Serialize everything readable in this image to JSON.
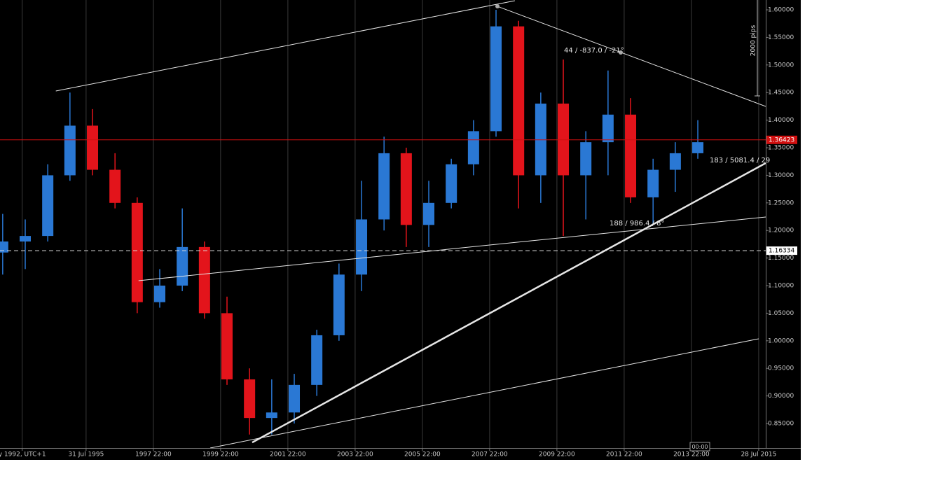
{
  "chart_data": {
    "type": "candlestick",
    "xlim": [
      1993.02,
      2015.79
    ],
    "ylim": [
      0.8056,
      1.6178
    ],
    "xticks": [
      {
        "value": 1993.68,
        "label": "y 1992, UTC+1"
      },
      {
        "value": 1995.58,
        "label": "31 Jul 1995"
      },
      {
        "value": 1997.58,
        "label": "1997 22:00"
      },
      {
        "value": 1999.58,
        "label": "1999 22:00"
      },
      {
        "value": 2001.58,
        "label": "2001 22:00"
      },
      {
        "value": 2003.58,
        "label": "2003 22:00"
      },
      {
        "value": 2005.58,
        "label": "2005 22:00"
      },
      {
        "value": 2007.58,
        "label": "2007 22:00"
      },
      {
        "value": 2009.58,
        "label": "2009 22:00"
      },
      {
        "value": 2011.58,
        "label": "2011 22:00"
      },
      {
        "value": 2013.58,
        "label": "2013 22:00"
      },
      {
        "value": 2015.58,
        "label": "28 Jul 2015"
      }
    ],
    "yticks": [
      {
        "value": 0.85,
        "label": "0.85000"
      },
      {
        "value": 0.9,
        "label": "0.90000"
      },
      {
        "value": 0.95,
        "label": "0.95000"
      },
      {
        "value": 1.0,
        "label": "1.00000"
      },
      {
        "value": 1.05,
        "label": "1.05000"
      },
      {
        "value": 1.1,
        "label": "1.10000"
      },
      {
        "value": 1.15,
        "label": "1.15000"
      },
      {
        "value": 1.2,
        "label": "1.20000"
      },
      {
        "value": 1.25,
        "label": "1.25000"
      },
      {
        "value": 1.3,
        "label": "1.30000"
      },
      {
        "value": 1.35,
        "label": "1.35000"
      },
      {
        "value": 1.4,
        "label": "1.40000"
      },
      {
        "value": 1.45,
        "label": "1.45000"
      },
      {
        "value": 1.5,
        "label": "1.50000"
      },
      {
        "value": 1.55,
        "label": "1.55000"
      },
      {
        "value": 1.6,
        "label": "1.60000"
      }
    ],
    "grid": true,
    "up_color": "#2a78d4",
    "down_color": "#e3141b",
    "candles": {
      "x": [
        1993.1,
        1993.77,
        1994.44,
        1995.1,
        1995.77,
        1996.44,
        1997.1,
        1997.77,
        1998.44,
        1999.1,
        1999.77,
        2000.44,
        2001.1,
        2001.77,
        2002.44,
        2003.1,
        2003.77,
        2004.44,
        2005.1,
        2005.77,
        2006.44,
        2007.1,
        2007.77,
        2008.44,
        2009.1,
        2009.77,
        2010.44,
        2011.1,
        2011.77,
        2012.44,
        2013.1,
        2013.77
      ],
      "open": [
        1.16,
        1.18,
        1.19,
        1.3,
        1.39,
        1.31,
        1.25,
        1.07,
        1.1,
        1.17,
        1.05,
        0.93,
        0.86,
        0.87,
        0.92,
        1.01,
        1.12,
        1.22,
        1.34,
        1.21,
        1.25,
        1.32,
        1.38,
        1.57,
        1.3,
        1.43,
        1.3,
        1.36,
        1.41,
        1.26,
        1.31,
        1.34
      ],
      "high": [
        1.23,
        1.22,
        1.32,
        1.45,
        1.42,
        1.34,
        1.26,
        1.13,
        1.24,
        1.18,
        1.08,
        0.95,
        0.93,
        0.94,
        1.02,
        1.14,
        1.29,
        1.37,
        1.35,
        1.29,
        1.33,
        1.4,
        1.6,
        1.58,
        1.45,
        1.51,
        1.38,
        1.49,
        1.44,
        1.33,
        1.36,
        1.4
      ],
      "low": [
        1.12,
        1.13,
        1.18,
        1.29,
        1.3,
        1.24,
        1.05,
        1.06,
        1.09,
        1.04,
        0.92,
        0.83,
        0.83,
        0.85,
        0.9,
        1.0,
        1.09,
        1.2,
        1.17,
        1.17,
        1.24,
        1.3,
        1.37,
        1.24,
        1.25,
        1.19,
        1.22,
        1.3,
        1.25,
        1.21,
        1.27,
        1.33
      ],
      "close": [
        1.18,
        1.19,
        1.3,
        1.39,
        1.31,
        1.25,
        1.07,
        1.1,
        1.17,
        1.05,
        0.93,
        0.86,
        0.87,
        0.92,
        1.01,
        1.12,
        1.22,
        1.34,
        1.21,
        1.25,
        1.32,
        1.38,
        1.57,
        1.3,
        1.43,
        1.3,
        1.36,
        1.41,
        1.26,
        1.31,
        1.34,
        1.36
      ]
    },
    "price_line": 1.36423,
    "dashed_line": 1.16334,
    "trendlines": [
      {
        "x": [
          1994.68,
          2008.33
        ],
        "y": [
          1.4528,
          1.6165
        ],
        "width": 1
      },
      {
        "x": [
          2007.81,
          2015.79
        ],
        "y": [
          1.6063,
          1.4249
        ],
        "width": 1
      },
      {
        "x": [
          1997.14,
          2015.79
        ],
        "y": [
          1.1089,
          1.2244
        ],
        "width": 1
      },
      {
        "x": [
          2000.52,
          2015.79
        ],
        "y": [
          0.8157,
          1.3221
        ],
        "width": 2.5
      },
      {
        "x": [
          1999.27,
          2015.58
        ],
        "y": [
          0.8056,
          1.0036
        ],
        "width": 1
      }
    ],
    "annotations": [
      "44 / -837.0 / -21°",
      "183 / 5081.4 / 29",
      "188 / 986.4 / 8°"
    ],
    "ruler_label": "2000 pips",
    "cursor_label": "00:00"
  }
}
